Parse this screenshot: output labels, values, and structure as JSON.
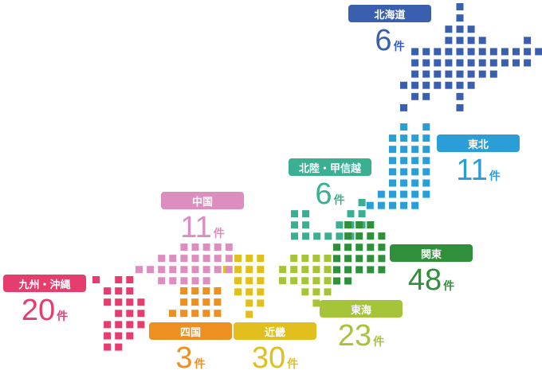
{
  "count_unit": "件",
  "regions": {
    "hokkaido": {
      "name": "北海道",
      "count": "6",
      "color": "#3a5faf"
    },
    "tohoku": {
      "name": "東北",
      "count": "11",
      "color": "#2b9ed8"
    },
    "koshinetsu": {
      "name": "北陸・甲信越",
      "count": "6",
      "color": "#3aaf91"
    },
    "kanto": {
      "name": "関東",
      "count": "48",
      "color": "#2f8f3a"
    },
    "tokai": {
      "name": "東海",
      "count": "23",
      "color": "#a6c43a"
    },
    "kinki": {
      "name": "近畿",
      "count": "30",
      "color": "#e0bf1e"
    },
    "chugoku": {
      "name": "中国",
      "count": "11",
      "color": "#dc8fbe"
    },
    "shikoku": {
      "name": "四国",
      "count": "3",
      "color": "#ee8f22"
    },
    "kyushu": {
      "name": "九州・沖縄",
      "count": "20",
      "color": "#e63d6f"
    }
  }
}
